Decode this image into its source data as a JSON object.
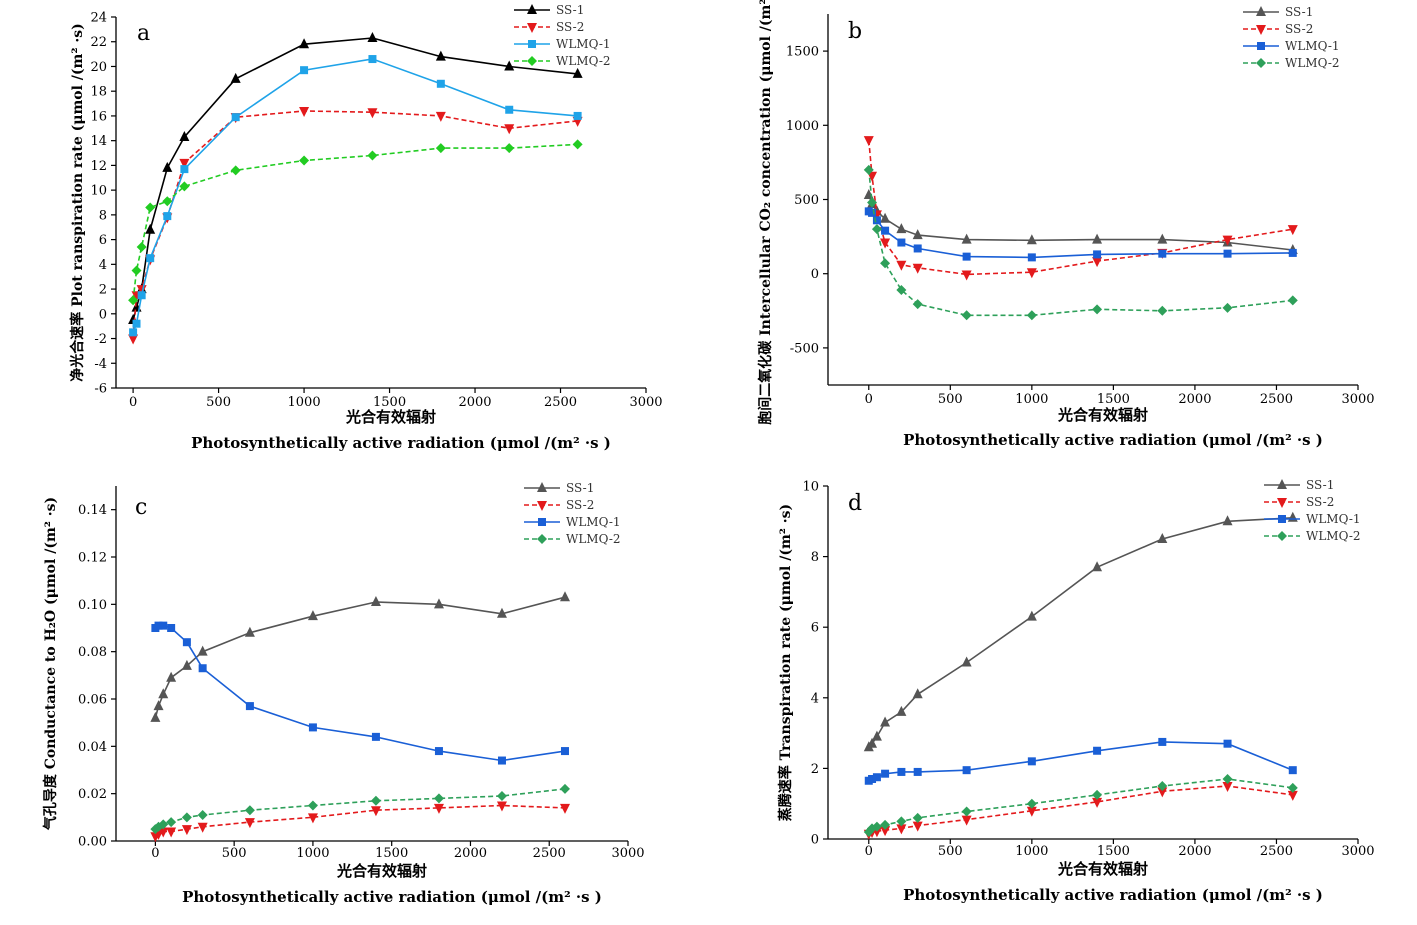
{
  "chart_data": [
    {
      "type": "line",
      "label": "a",
      "xlabel_cn": "光合有效辐射",
      "xlabel": "Photosynthetically active radiation (μmol /(m² ·s )",
      "ylabel": "净光合速率 Plot ranspiration rate (μmol /(m² ·s)",
      "xlim": [
        -100,
        3000
      ],
      "ylim": [
        -6,
        24
      ],
      "xticks": [
        0,
        500,
        1000,
        1500,
        2000,
        2500,
        3000
      ],
      "yticks": [
        -6,
        -4,
        -2,
        0,
        2,
        4,
        6,
        8,
        10,
        12,
        14,
        16,
        18,
        20,
        22,
        24
      ],
      "legend_position": "top-right",
      "series": [
        {
          "name": "SS-1",
          "color": "#000000",
          "marker": "triangle-up",
          "dash": "solid",
          "x": [
            0,
            20,
            50,
            100,
            200,
            300,
            600,
            1000,
            1400,
            1800,
            2200,
            2600
          ],
          "y": [
            -0.5,
            0.5,
            2,
            6.8,
            11.8,
            14.3,
            19,
            21.8,
            22.3,
            20.8,
            20,
            19.4
          ]
        },
        {
          "name": "SS-2",
          "color": "#e31a1c",
          "marker": "triangle-down",
          "dash": "dashed",
          "x": [
            0,
            20,
            50,
            100,
            200,
            300,
            600,
            1000,
            1400,
            1800,
            2200,
            2600
          ],
          "y": [
            -2,
            1.5,
            2,
            4.4,
            7.8,
            12.2,
            15.9,
            16.4,
            16.3,
            16,
            15,
            15.6
          ]
        },
        {
          "name": "WLMQ-1",
          "color": "#1fa3e8",
          "marker": "square",
          "dash": "solid",
          "x": [
            0,
            20,
            50,
            100,
            200,
            300,
            600,
            1000,
            1400,
            1800,
            2200,
            2600
          ],
          "y": [
            -1.5,
            -0.8,
            1.5,
            4.5,
            7.9,
            11.7,
            15.9,
            19.7,
            20.6,
            18.6,
            16.5,
            16
          ]
        },
        {
          "name": "WLMQ-2",
          "color": "#22cc22",
          "marker": "diamond",
          "dash": "dashed",
          "x": [
            0,
            20,
            50,
            100,
            200,
            300,
            600,
            1000,
            1400,
            1800,
            2200,
            2600
          ],
          "y": [
            1.1,
            3.5,
            5.4,
            8.6,
            9.1,
            10.3,
            11.6,
            12.4,
            12.8,
            13.4,
            13.4,
            13.7
          ]
        }
      ]
    },
    {
      "type": "line",
      "label": "b",
      "xlabel_cn": "光合有效辐射",
      "xlabel": "Photosynthetically active radiation (μmol /(m² ·s )",
      "ylabel": "胞间二氧化碳 Intercellular CO₂ concentration (μmol /(m² ·s)",
      "xlim": [
        -250,
        3000
      ],
      "ylim": [
        -750,
        1750
      ],
      "xticks": [
        0,
        500,
        1000,
        1500,
        2000,
        2500,
        3000
      ],
      "yticks": [
        -500,
        0,
        500,
        1000,
        1500
      ],
      "legend_position": "top-right",
      "series": [
        {
          "name": "SS-1",
          "color": "#555555",
          "marker": "triangle-up",
          "dash": "solid",
          "x": [
            0,
            20,
            50,
            100,
            200,
            300,
            600,
            1000,
            1400,
            1800,
            2200,
            2600
          ],
          "y": [
            530,
            470,
            420,
            370,
            300,
            260,
            230,
            225,
            230,
            230,
            210,
            160
          ]
        },
        {
          "name": "SS-2",
          "color": "#e31a1c",
          "marker": "triangle-down",
          "dash": "dashed",
          "x": [
            0,
            20,
            50,
            100,
            200,
            300,
            600,
            1000,
            1400,
            1800,
            2200,
            2600
          ],
          "y": [
            900,
            660,
            400,
            210,
            60,
            40,
            -5,
            10,
            85,
            140,
            230,
            300
          ]
        },
        {
          "name": "WLMQ-1",
          "color": "#1a5fd6",
          "marker": "square",
          "dash": "solid",
          "x": [
            0,
            20,
            50,
            100,
            200,
            300,
            600,
            1000,
            1400,
            1800,
            2200,
            2600
          ],
          "y": [
            420,
            410,
            360,
            290,
            210,
            170,
            115,
            110,
            130,
            135,
            135,
            140
          ]
        },
        {
          "name": "WLMQ-2",
          "color": "#2ea05a",
          "marker": "diamond",
          "dash": "dashed",
          "x": [
            0,
            20,
            50,
            100,
            200,
            300,
            600,
            1000,
            1400,
            1800,
            2200,
            2600
          ],
          "y": [
            700,
            480,
            300,
            70,
            -110,
            -205,
            -280,
            -280,
            -240,
            -250,
            -230,
            -180
          ]
        }
      ]
    },
    {
      "type": "line",
      "label": "c",
      "xlabel_cn": "光合有效辐射",
      "xlabel": "Photosynthetically active radiation (μmol /(m² ·s )",
      "ylabel": "气孔导度 Conductance to H₂O (μmol /(m² ·s)",
      "xlim": [
        -250,
        3000
      ],
      "ylim": [
        0,
        0.15
      ],
      "xticks": [
        0,
        500,
        1000,
        1500,
        2000,
        2500,
        3000
      ],
      "yticks": [
        0.0,
        0.02,
        0.04,
        0.06,
        0.08,
        0.1,
        0.12,
        0.14
      ],
      "legend_position": "top-right",
      "series": [
        {
          "name": "SS-1",
          "color": "#555555",
          "marker": "triangle-up",
          "dash": "solid",
          "x": [
            0,
            20,
            50,
            100,
            200,
            300,
            600,
            1000,
            1400,
            1800,
            2200,
            2600
          ],
          "y": [
            0.052,
            0.057,
            0.062,
            0.069,
            0.074,
            0.08,
            0.088,
            0.095,
            0.101,
            0.1,
            0.096,
            0.103
          ]
        },
        {
          "name": "SS-2",
          "color": "#e31a1c",
          "marker": "triangle-down",
          "dash": "dashed",
          "x": [
            0,
            20,
            50,
            100,
            200,
            300,
            600,
            1000,
            1400,
            1800,
            2200,
            2600
          ],
          "y": [
            0.002,
            0.003,
            0.004,
            0.004,
            0.005,
            0.006,
            0.008,
            0.01,
            0.013,
            0.014,
            0.015,
            0.014
          ]
        },
        {
          "name": "WLMQ-1",
          "color": "#1a5fd6",
          "marker": "square",
          "dash": "solid",
          "x": [
            0,
            20,
            50,
            100,
            200,
            300,
            600,
            1000,
            1400,
            1800,
            2200,
            2600
          ],
          "y": [
            0.09,
            0.091,
            0.091,
            0.09,
            0.084,
            0.073,
            0.057,
            0.048,
            0.044,
            0.038,
            0.034,
            0.038
          ]
        },
        {
          "name": "WLMQ-2",
          "color": "#2ea05a",
          "marker": "diamond",
          "dash": "dashed",
          "x": [
            0,
            20,
            50,
            100,
            200,
            300,
            600,
            1000,
            1400,
            1800,
            2200,
            2600
          ],
          "y": [
            0.005,
            0.006,
            0.007,
            0.008,
            0.01,
            0.011,
            0.013,
            0.015,
            0.017,
            0.018,
            0.019,
            0.022
          ]
        }
      ]
    },
    {
      "type": "line",
      "label": "d",
      "xlabel_cn": "光合有效辐射",
      "xlabel": "Photosynthetically active radiation (μmol /(m² ·s )",
      "ylabel": "蒸腾速率 Transpiration rate (μmol /(m² ·s)",
      "xlim": [
        -250,
        3000
      ],
      "ylim": [
        0,
        10
      ],
      "xticks": [
        0,
        500,
        1000,
        1500,
        2000,
        2500,
        3000
      ],
      "yticks": [
        0,
        2,
        4,
        6,
        8,
        10
      ],
      "legend_position": "top-right",
      "series": [
        {
          "name": "SS-1",
          "color": "#555555",
          "marker": "triangle-up",
          "dash": "solid",
          "x": [
            0,
            20,
            50,
            100,
            200,
            300,
            600,
            1000,
            1400,
            1800,
            2200,
            2600
          ],
          "y": [
            2.6,
            2.7,
            2.9,
            3.3,
            3.6,
            4.1,
            5.0,
            6.3,
            7.7,
            8.5,
            9.0,
            9.1
          ]
        },
        {
          "name": "SS-2",
          "color": "#e31a1c",
          "marker": "triangle-down",
          "dash": "dashed",
          "x": [
            0,
            20,
            50,
            100,
            200,
            300,
            600,
            1000,
            1400,
            1800,
            2200,
            2600
          ],
          "y": [
            0.15,
            0.2,
            0.22,
            0.25,
            0.3,
            0.38,
            0.55,
            0.8,
            1.05,
            1.35,
            1.5,
            1.25
          ]
        },
        {
          "name": "WLMQ-1",
          "color": "#1a5fd6",
          "marker": "square",
          "dash": "solid",
          "x": [
            0,
            20,
            50,
            100,
            200,
            300,
            600,
            1000,
            1400,
            1800,
            2200,
            2600
          ],
          "y": [
            1.65,
            1.7,
            1.75,
            1.85,
            1.9,
            1.9,
            1.95,
            2.2,
            2.5,
            2.75,
            2.7,
            1.95
          ]
        },
        {
          "name": "WLMQ-2",
          "color": "#2ea05a",
          "marker": "diamond",
          "dash": "dashed",
          "x": [
            0,
            20,
            50,
            100,
            200,
            300,
            600,
            1000,
            1400,
            1800,
            2200,
            2600
          ],
          "y": [
            0.2,
            0.3,
            0.35,
            0.4,
            0.5,
            0.6,
            0.78,
            1.0,
            1.25,
            1.5,
            1.7,
            1.45
          ]
        }
      ]
    }
  ]
}
